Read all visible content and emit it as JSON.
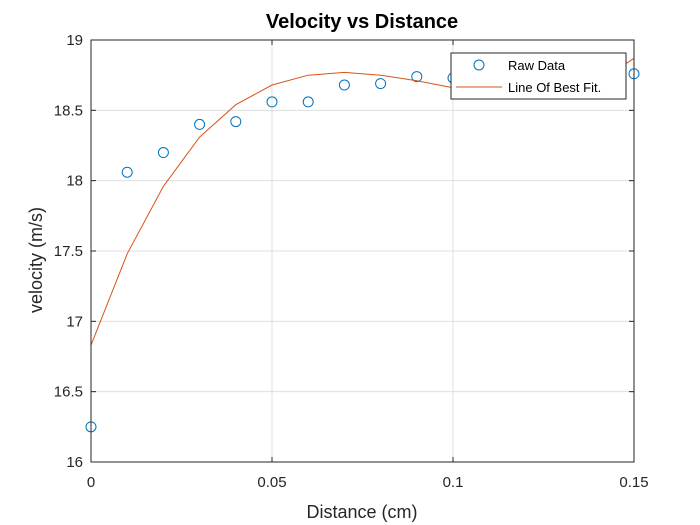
{
  "chart_data": {
    "type": "scatter",
    "title": "Velocity vs Distance",
    "xlabel": "Distance (cm)",
    "ylabel": "velocity (m/s)",
    "xlim": [
      0,
      0.15
    ],
    "ylim": [
      16,
      19
    ],
    "xticks": [
      0,
      0.05,
      0.1,
      0.15
    ],
    "xtick_labels": [
      "0",
      "0.05",
      "0.1",
      "0.15"
    ],
    "yticks": [
      16,
      16.5,
      17,
      17.5,
      18,
      18.5,
      19
    ],
    "ytick_labels": [
      "16",
      "16.5",
      "17",
      "17.5",
      "18",
      "18.5",
      "19"
    ],
    "grid": true,
    "legend_position": "top-right",
    "series": [
      {
        "name": "Raw Data",
        "style": "markers",
        "marker": "circle",
        "color": "#0072BD",
        "x": [
          0,
          0.01,
          0.02,
          0.03,
          0.04,
          0.05,
          0.06,
          0.07,
          0.08,
          0.09,
          0.1,
          0.11,
          0.12,
          0.13,
          0.14,
          0.15
        ],
        "y": [
          16.25,
          18.06,
          18.2,
          18.4,
          18.42,
          18.56,
          18.56,
          18.68,
          18.69,
          18.74,
          18.73,
          18.75,
          18.76,
          18.75,
          18.77,
          18.76
        ]
      },
      {
        "name": "Line Of Best Fit.",
        "style": "line",
        "color": "#D95319",
        "x": [
          0,
          0.01,
          0.02,
          0.03,
          0.04,
          0.05,
          0.06,
          0.07,
          0.08,
          0.09,
          0.1,
          0.11,
          0.12,
          0.13,
          0.14,
          0.15
        ],
        "y": [
          16.83,
          17.48,
          17.96,
          18.31,
          18.54,
          18.68,
          18.75,
          18.77,
          18.75,
          18.71,
          18.66,
          18.62,
          18.61,
          18.63,
          18.7,
          18.87
        ]
      }
    ]
  }
}
